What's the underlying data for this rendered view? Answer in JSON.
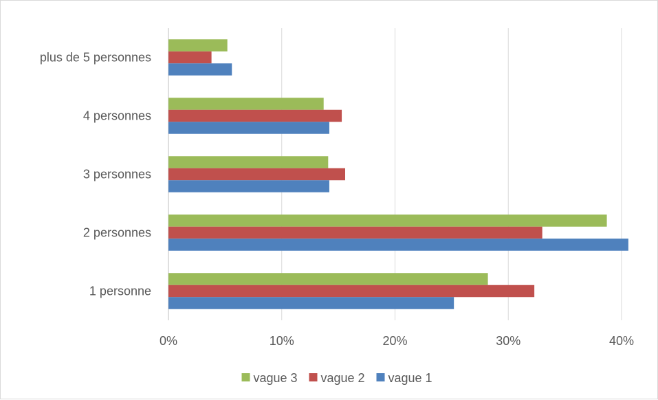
{
  "chart_data": {
    "type": "bar",
    "orientation": "horizontal",
    "categories": [
      "1 personne",
      "2 personnes",
      "3 personnes",
      "4 personnes",
      "plus de 5 personnes"
    ],
    "series": [
      {
        "name": "vague 1",
        "color": "#4f81bd",
        "values": [
          25.2,
          40.6,
          14.2,
          14.2,
          5.6
        ]
      },
      {
        "name": "vague 2",
        "color": "#c0504d",
        "values": [
          32.3,
          33.0,
          15.6,
          15.3,
          3.8
        ]
      },
      {
        "name": "vague 3",
        "color": "#9bbb59",
        "values": [
          28.2,
          38.7,
          14.1,
          13.7,
          5.2
        ]
      }
    ],
    "xlim": [
      0,
      40
    ],
    "x_ticks": [
      "0%",
      "10%",
      "20%",
      "30%",
      "40%"
    ],
    "grid": true,
    "legend": {
      "position": "bottom",
      "order": [
        "vague 3",
        "vague 2",
        "vague 1"
      ]
    }
  }
}
